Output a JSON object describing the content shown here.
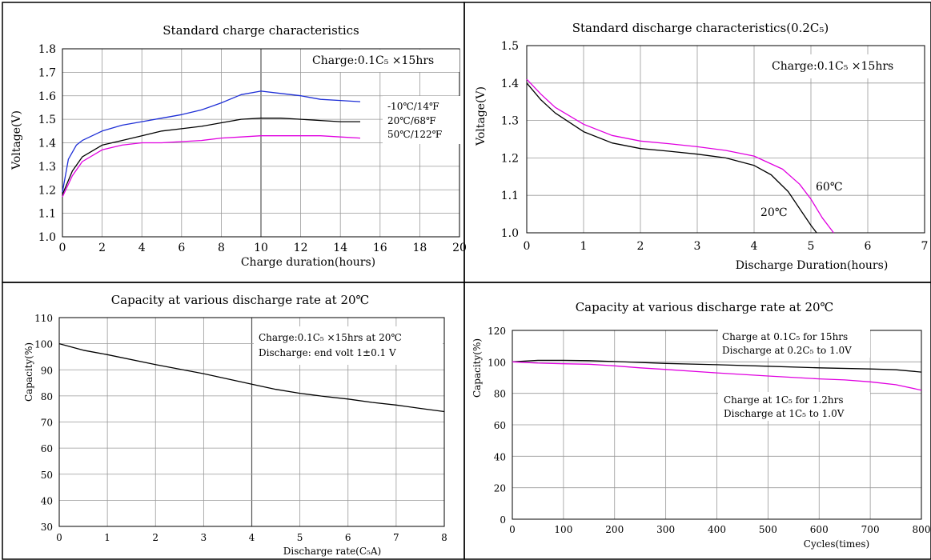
{
  "colors": {
    "blue": "#1e2fd6",
    "black": "#000000",
    "magenta": "#e000e0"
  },
  "chart_data": [
    {
      "type": "line",
      "title": "Standard charge characteristics",
      "xlabel": "Charge duration(hours)",
      "ylabel": "Voltage(V)",
      "xlim": [
        0,
        20
      ],
      "ylim": [
        1.0,
        1.8
      ],
      "xticks": [
        "0",
        "2",
        "4",
        "6",
        "8",
        "10",
        "12",
        "14",
        "16",
        "18",
        "20"
      ],
      "yticks": [
        "1.0",
        "1.1",
        "1.2",
        "1.3",
        "1.4",
        "1.5",
        "1.6",
        "1.7",
        "1.8"
      ],
      "annotation": "Charge:0.1C₅ ×15hrs",
      "grid": true,
      "series": [
        {
          "name": "-10℃/14℉",
          "color": "#1e2fd6",
          "x": [
            0,
            0.3,
            0.7,
            1,
            2,
            3,
            4,
            5,
            6,
            7,
            8,
            9,
            10,
            11,
            12,
            13,
            14,
            15
          ],
          "y": [
            1.19,
            1.33,
            1.39,
            1.41,
            1.45,
            1.475,
            1.49,
            1.505,
            1.52,
            1.54,
            1.57,
            1.605,
            1.62,
            1.61,
            1.6,
            1.585,
            1.58,
            1.575
          ]
        },
        {
          "name": "20℃/68℉",
          "color": "#000000",
          "x": [
            0,
            0.5,
            1,
            2,
            3,
            4,
            5,
            6,
            7,
            8,
            9,
            10,
            11,
            12,
            13,
            14,
            15
          ],
          "y": [
            1.18,
            1.28,
            1.34,
            1.39,
            1.41,
            1.43,
            1.45,
            1.46,
            1.47,
            1.485,
            1.5,
            1.505,
            1.505,
            1.5,
            1.495,
            1.49,
            1.49
          ]
        },
        {
          "name": "50℃/122℉",
          "color": "#e000e0",
          "x": [
            0,
            0.5,
            1,
            2,
            3,
            4,
            5,
            6,
            7,
            8,
            9,
            10,
            11,
            12,
            13,
            14,
            15
          ],
          "y": [
            1.17,
            1.26,
            1.32,
            1.37,
            1.39,
            1.4,
            1.4,
            1.405,
            1.41,
            1.42,
            1.425,
            1.43,
            1.43,
            1.43,
            1.43,
            1.425,
            1.42
          ]
        }
      ]
    },
    {
      "type": "line",
      "title": "Standard discharge characteristics(0.2C₅)",
      "xlabel": "Discharge Duration(hours)",
      "ylabel": "Voltage(V)",
      "xlim": [
        0,
        7
      ],
      "ylim": [
        1.0,
        1.5
      ],
      "xticks": [
        "0",
        "1",
        "2",
        "3",
        "4",
        "5",
        "6",
        "7"
      ],
      "yticks": [
        "1.0",
        "1.1",
        "1.2",
        "1.3",
        "1.4",
        "1.5"
      ],
      "annotation": "Charge:0.1C₅ ×15hrs",
      "grid": true,
      "series": [
        {
          "name": "20℃",
          "color": "#000000",
          "x": [
            0,
            0.25,
            0.5,
            1,
            1.5,
            2,
            2.5,
            3,
            3.5,
            4,
            4.3,
            4.6,
            4.8,
            5.0,
            5.1
          ],
          "y": [
            1.4,
            1.355,
            1.32,
            1.27,
            1.24,
            1.225,
            1.218,
            1.21,
            1.2,
            1.18,
            1.155,
            1.11,
            1.065,
            1.02,
            1.0
          ]
        },
        {
          "name": "60℃",
          "color": "#e000e0",
          "x": [
            0,
            0.25,
            0.5,
            1,
            1.5,
            2,
            2.5,
            3,
            3.5,
            4,
            4.5,
            4.8,
            5.0,
            5.2,
            5.4
          ],
          "y": [
            1.41,
            1.37,
            1.335,
            1.29,
            1.26,
            1.245,
            1.238,
            1.23,
            1.22,
            1.205,
            1.17,
            1.13,
            1.09,
            1.04,
            1.0
          ]
        }
      ]
    },
    {
      "type": "line",
      "title": "Capacity at various discharge rate at 20℃",
      "xlabel": "Discharge rate(C₅A)",
      "ylabel": "Capacity(%)",
      "xlim": [
        0,
        8
      ],
      "ylim": [
        30,
        110
      ],
      "xticks": [
        "0",
        "1",
        "2",
        "3",
        "4",
        "5",
        "6",
        "7",
        "8"
      ],
      "yticks": [
        "30",
        "40",
        "50",
        "60",
        "70",
        "80",
        "90",
        "100",
        "110"
      ],
      "annotation": [
        "Charge:0.1C₅ ×15hrs at 20℃",
        "Discharge: end volt 1±0.1 V"
      ],
      "grid": true,
      "series": [
        {
          "name": "",
          "color": "#000000",
          "x": [
            0,
            0.5,
            1,
            2,
            3,
            4,
            4.5,
            5,
            5.5,
            6,
            6.5,
            7,
            7.5,
            8
          ],
          "y": [
            100,
            97.5,
            95.8,
            92,
            88.5,
            84.5,
            82.5,
            81,
            79.8,
            78.8,
            77.5,
            76.5,
            75.2,
            74
          ]
        }
      ]
    },
    {
      "type": "line",
      "title": "Capacity at various discharge rate at 20℃",
      "xlabel": "Cycles(times)",
      "ylabel": "Capacity(%)",
      "xlim": [
        0,
        800
      ],
      "ylim": [
        0,
        120
      ],
      "xticks": [
        "0",
        "100",
        "200",
        "300",
        "400",
        "500",
        "600",
        "700",
        "800"
      ],
      "yticks": [
        "0",
        "20",
        "40",
        "60",
        "80",
        "100",
        "120"
      ],
      "annotation": [
        "Charge at 0.1C₅ for 15hrs",
        "Discharge at 0.2C₅ to 1.0V",
        "Charge at 1C₅ for 1.2hrs",
        "Discharge at 1C₅ to 1.0V"
      ],
      "grid": true,
      "series": [
        {
          "name": "",
          "color": "#000000",
          "x": [
            0,
            50,
            100,
            150,
            200,
            300,
            400,
            500,
            600,
            700,
            750,
            800
          ],
          "y": [
            100,
            101,
            101,
            100.8,
            100.2,
            99,
            98.2,
            97.2,
            96.2,
            95.5,
            95,
            93.5
          ]
        },
        {
          "name": "",
          "color": "#e000e0",
          "x": [
            0,
            50,
            100,
            150,
            200,
            250,
            300,
            400,
            500,
            600,
            650,
            700,
            750,
            800
          ],
          "y": [
            100,
            99.2,
            98.8,
            98.5,
            97.5,
            96.2,
            95.2,
            93,
            91,
            89.2,
            88.5,
            87.3,
            85.5,
            82
          ]
        }
      ]
    }
  ]
}
